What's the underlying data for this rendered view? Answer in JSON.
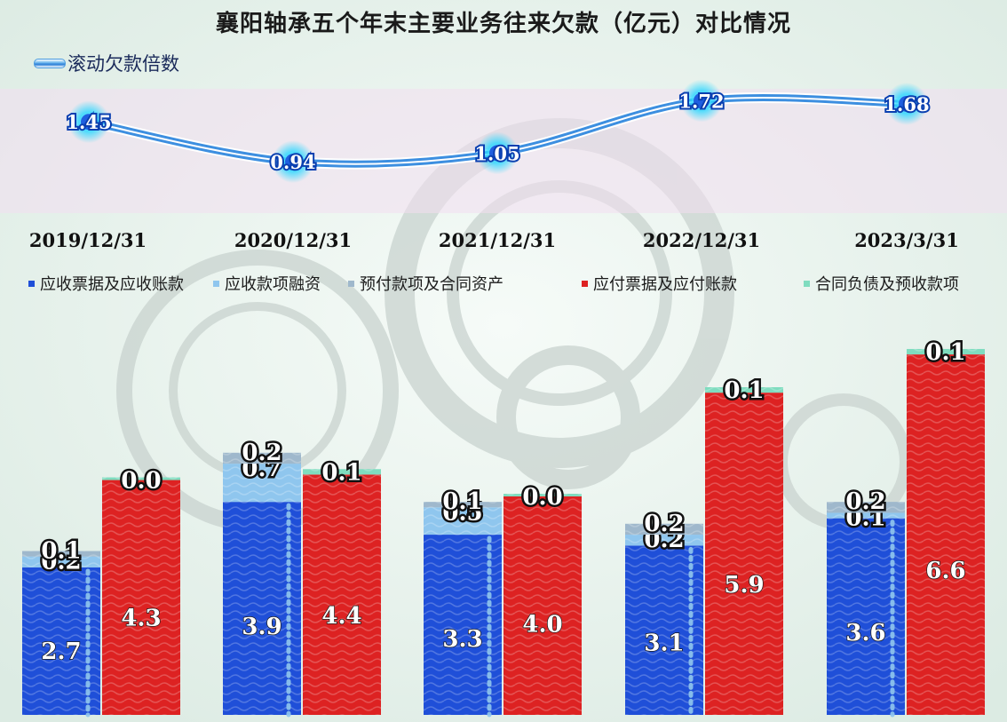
{
  "title": "襄阳轴承五个年末主要业务往来欠款（亿元）对比情况",
  "chart_data": [
    {
      "type": "line",
      "legend": "滚动欠款倍数",
      "categories": [
        "2019/12/31",
        "2020/12/31",
        "2021/12/31",
        "2022/12/31",
        "2023/3/31"
      ],
      "series": [
        {
          "name": "滚动欠款倍数",
          "values": [
            1.45,
            0.94,
            1.05,
            1.72,
            1.68
          ],
          "labels": [
            "1.45",
            "0.94",
            "1.05",
            "1.72",
            "1.68"
          ]
        }
      ],
      "colors": {
        "line": "#3d8fe0",
        "glow": "#2fd8ff"
      }
    },
    {
      "type": "bar",
      "stacked": true,
      "categories": [
        "2019/12/31",
        "2020/12/31",
        "2021/12/31",
        "2022/12/31",
        "2023/3/31"
      ],
      "series": [
        {
          "name": "应收票据及应收账款",
          "stack": "receivable",
          "color": "#1f4fd8",
          "values": [
            2.7,
            3.9,
            3.3,
            3.1,
            3.6
          ],
          "labels": [
            "2.7",
            "3.9",
            "3.3",
            "3.1",
            "3.6"
          ]
        },
        {
          "name": "应收款项融资",
          "stack": "receivable",
          "color": "#8fc6ee",
          "values": [
            0.2,
            0.7,
            0.5,
            0.2,
            0.1
          ],
          "labels": [
            "0.2",
            "0.7",
            "0.5",
            "0.2",
            "0.1"
          ]
        },
        {
          "name": "预付款项及合同资产",
          "stack": "receivable",
          "color": "#9fb8cc",
          "values": [
            0.1,
            0.2,
            0.1,
            0.2,
            0.2
          ],
          "labels": [
            "0.1",
            "0.2",
            "0.1",
            "0.2",
            "0.2"
          ]
        },
        {
          "name": "应付票据及应付账款",
          "stack": "payable",
          "color": "#dd2222",
          "values": [
            4.3,
            4.4,
            4.0,
            5.9,
            6.6
          ],
          "labels": [
            "4.3",
            "4.4",
            "4.0",
            "5.9",
            "6.6"
          ]
        },
        {
          "name": "合同负债及预收款项",
          "stack": "payable",
          "color": "#7fdcbf",
          "values": [
            0.0,
            0.1,
            0.0,
            0.1,
            0.1
          ],
          "labels": [
            "0.0",
            "0.1",
            "0.0",
            "0.1",
            "0.1"
          ]
        }
      ]
    }
  ]
}
